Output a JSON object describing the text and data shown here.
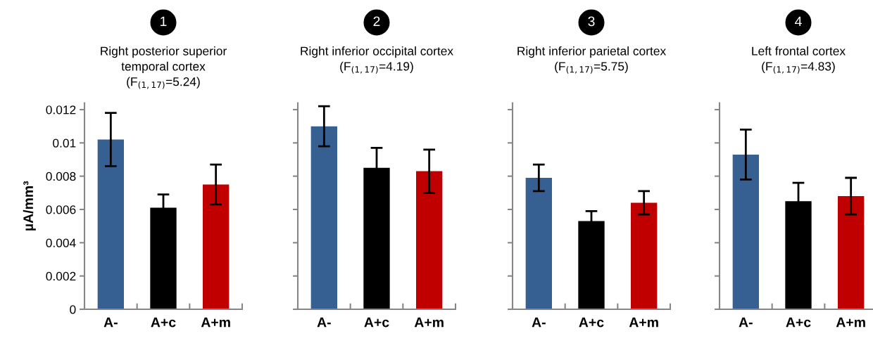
{
  "chart_data": [
    {
      "type": "bar",
      "title": "Right posterior superior\ntemporal cortex",
      "subtitle": "(F$_{(1,17)}$=5.24)",
      "ylabel": "µA/mm³",
      "annotations": [
        "1"
      ],
      "categories": [
        "A-",
        "A+c",
        "A+m"
      ],
      "values": [
        0.0102,
        0.0061,
        0.0075
      ],
      "errors": [
        0.0016,
        0.0008,
        0.0012
      ],
      "colors": [
        "#376092",
        "#000000",
        "#c00000"
      ],
      "ylim": [
        0,
        0.0124
      ],
      "yticks": [
        0,
        0.002,
        0.004,
        0.006,
        0.008,
        0.01,
        0.012
      ],
      "grid": false,
      "legend": false
    },
    {
      "type": "bar",
      "title": "Right inferior occipital cortex",
      "subtitle": "(F$_{(1,17)}$=4.19)",
      "annotations": [
        "2"
      ],
      "categories": [
        "A-",
        "A+c",
        "A+m"
      ],
      "values": [
        0.011,
        0.0085,
        0.0083
      ],
      "errors": [
        0.0012,
        0.0012,
        0.0013
      ],
      "colors": [
        "#376092",
        "#000000",
        "#c00000"
      ],
      "ylim": [
        0,
        0.0124
      ],
      "yticks": [
        0,
        0.002,
        0.004,
        0.006,
        0.008,
        0.01,
        0.012
      ],
      "tick_labels": "x",
      "grid": false,
      "legend": false
    },
    {
      "type": "bar",
      "title": "Right inferior parietal cortex",
      "subtitle": "(F$_{(1,17)}$=5.75)",
      "annotations": [
        "3"
      ],
      "categories": [
        "A-",
        "A+c",
        "A+m"
      ],
      "values": [
        0.0079,
        0.0053,
        0.0064
      ],
      "errors": [
        0.0008,
        0.0006,
        0.0007
      ],
      "colors": [
        "#376092",
        "#000000",
        "#c00000"
      ],
      "ylim": [
        0,
        0.0124
      ],
      "yticks": [
        0,
        0.002,
        0.004,
        0.006,
        0.008,
        0.01,
        0.012
      ],
      "tick_labels": "x",
      "grid": false,
      "legend": false
    },
    {
      "type": "bar",
      "title": "Left frontal cortex",
      "subtitle": "(F$_{(1,17)}$=4.83)",
      "annotations": [
        "4"
      ],
      "categories": [
        "A-",
        "A+c",
        "A+m"
      ],
      "values": [
        0.0093,
        0.0065,
        0.0068
      ],
      "errors": [
        0.0015,
        0.0011,
        0.0011
      ],
      "colors": [
        "#376092",
        "#000000",
        "#c00000"
      ],
      "ylim": [
        0,
        0.0124
      ],
      "yticks": [
        0,
        0.002,
        0.004,
        0.006,
        0.008,
        0.01,
        0.012
      ],
      "tick_labels": "x",
      "grid": false,
      "legend": false
    }
  ]
}
